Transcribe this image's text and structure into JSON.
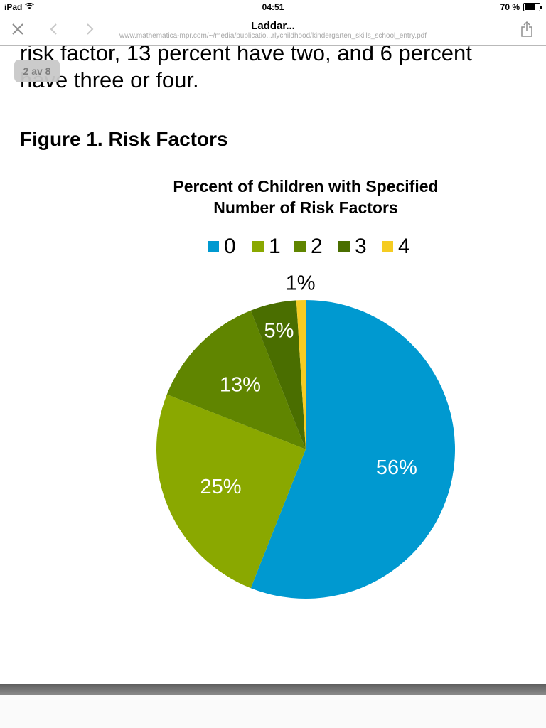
{
  "status_bar": {
    "device": "iPad",
    "time": "04:51",
    "battery_percent": "70 %",
    "battery_level": 0.7
  },
  "toolbar": {
    "title": "Laddar...",
    "url": "www.mathematica-mpr.com/~/media/publicatio...rlychildhood/kindergarten_skills_school_entry.pdf",
    "icons": [
      "close-icon",
      "back-icon",
      "forward-icon",
      "share-icon"
    ]
  },
  "document": {
    "intro_line1": "risk factor, 13 percent have two, and 6 percent",
    "intro_line2": "have three or four.",
    "page_indicator": "2 av 8",
    "figure_title": "Figure 1. Risk Factors"
  },
  "chart_data": {
    "type": "pie",
    "title_line1": "Percent of Children with Specified",
    "title_line2": "Number of Risk Factors",
    "legend_position": "top",
    "categories": [
      "0",
      "1",
      "2",
      "3",
      "4"
    ],
    "values": [
      56,
      25,
      13,
      5,
      1
    ],
    "labels": [
      "56%",
      "25%",
      "13%",
      "5%",
      "1%"
    ],
    "colors": [
      "#0099d0",
      "#8aa800",
      "#608500",
      "#4a6e00",
      "#f5cc22"
    ],
    "label_colors": [
      "#ffffff",
      "#ffffff",
      "#ffffff",
      "#ffffff",
      "#000000"
    ]
  }
}
